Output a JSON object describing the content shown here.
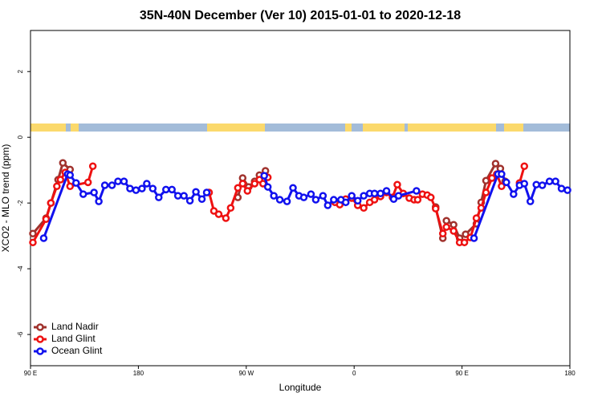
{
  "chart_data": {
    "type": "line",
    "title": "35N-40N December (Ver 10)   2015-01-01 to 2020-12-18",
    "x_label": "Longitude",
    "y_label": "XCO2 - MLO trend (ppm)",
    "xlim": [
      90,
      540
    ],
    "ylim": [
      -6.95,
      3.25
    ],
    "xticks": [
      {
        "value": 90,
        "label": "90 E"
      },
      180,
      {
        "value": 270,
        "label": "90 W"
      },
      {
        "value": 360,
        "label": "0"
      },
      {
        "value": 450,
        "label": "90 E"
      },
      {
        "value": 540,
        "label": "180"
      }
    ],
    "yticks": [
      2,
      0,
      -2,
      -4,
      -6
    ],
    "legend": "bottom-left",
    "series": [
      {
        "name": "Land Nadir",
        "color": "#a0322d",
        "x": [
          92,
          103,
          107,
          113,
          117,
          123,
          null,
          263,
          267,
          272,
          277,
          281,
          286,
          null,
          428,
          434,
          437,
          443,
          448,
          453,
          462,
          466,
          470,
          478,
          482,
          486
        ],
        "values": [
          -2.93,
          -2.46,
          -2.0,
          -1.29,
          -0.78,
          -0.98,
          null,
          -1.83,
          -1.24,
          -1.51,
          -1.34,
          -1.15,
          -1.02,
          null,
          -2.12,
          -3.07,
          -2.54,
          -2.66,
          -3.07,
          -2.95,
          -2.63,
          -1.98,
          -1.32,
          -0.8,
          -0.95,
          -1.34
        ]
      },
      {
        "name": "Land Glint",
        "color": "#ee1111",
        "x": [
          92,
          103,
          107,
          112,
          115,
          119,
          123,
          138,
          142,
          null,
          239,
          243,
          247,
          253,
          257,
          263,
          267,
          271,
          277,
          281,
          284,
          288,
          null,
          344,
          348,
          353,
          358,
          363,
          368,
          373,
          377,
          382,
          387,
          392,
          396,
          401,
          406,
          410,
          413,
          417,
          421,
          424,
          428,
          434,
          437,
          443,
          448,
          452,
          457,
          462,
          466,
          470,
          475,
          479,
          483,
          null,
          498,
          502
        ],
        "values": [
          -3.2,
          -2.49,
          -2.0,
          -1.49,
          -1.29,
          -1.07,
          -1.49,
          -1.37,
          -0.88,
          null,
          -1.68,
          -2.24,
          -2.34,
          -2.46,
          -2.15,
          -1.54,
          -1.41,
          -1.63,
          -1.41,
          -1.29,
          -1.41,
          -1.22,
          null,
          -1.98,
          -2.05,
          -1.88,
          -1.85,
          -2.07,
          -2.15,
          -1.98,
          -1.9,
          -1.8,
          -1.68,
          -1.83,
          -1.44,
          -1.71,
          -1.85,
          -1.9,
          -1.9,
          -1.73,
          -1.76,
          -1.83,
          -2.17,
          -2.93,
          -2.73,
          -2.85,
          -3.2,
          -3.2,
          -3.05,
          -2.46,
          -2.15,
          -1.68,
          -1.24,
          -1.12,
          -1.49,
          null,
          -1.39,
          -0.88
        ]
      },
      {
        "name": "Ocean Glint",
        "color": "#1111ee",
        "x": [
          101,
          121,
          123,
          128,
          134,
          143,
          147,
          152,
          158,
          163,
          168,
          173,
          178,
          183,
          187,
          192,
          197,
          203,
          208,
          213,
          218,
          223,
          228,
          233,
          237,
          null,
          285,
          288,
          293,
          298,
          304,
          309,
          314,
          318,
          324,
          328,
          334,
          338,
          343,
          349,
          353,
          358,
          363,
          368,
          373,
          377,
          382,
          387,
          393,
          397,
          412,
          null,
          460,
          480,
          483,
          487,
          493,
          498,
          502,
          507,
          512,
          517,
          523,
          528,
          533,
          538
        ],
        "values": [
          -3.07,
          -1.12,
          -1.15,
          -1.39,
          -1.73,
          -1.68,
          -1.95,
          -1.46,
          -1.46,
          -1.34,
          -1.34,
          -1.56,
          -1.61,
          -1.56,
          -1.41,
          -1.56,
          -1.83,
          -1.59,
          -1.59,
          -1.78,
          -1.78,
          -1.93,
          -1.66,
          -1.88,
          -1.68,
          null,
          -1.17,
          -1.51,
          -1.78,
          -1.9,
          -1.95,
          -1.54,
          -1.78,
          -1.83,
          -1.73,
          -1.9,
          -1.78,
          -2.07,
          -1.9,
          -1.9,
          -1.98,
          -1.78,
          -1.93,
          -1.78,
          -1.71,
          -1.71,
          -1.71,
          -1.63,
          -1.88,
          -1.78,
          -1.63,
          null,
          -3.07,
          -1.12,
          -1.12,
          -1.37,
          -1.73,
          -1.46,
          -1.41,
          -1.95,
          -1.44,
          -1.46,
          -1.34,
          -1.34,
          -1.56,
          -1.61
        ]
      }
    ]
  }
}
